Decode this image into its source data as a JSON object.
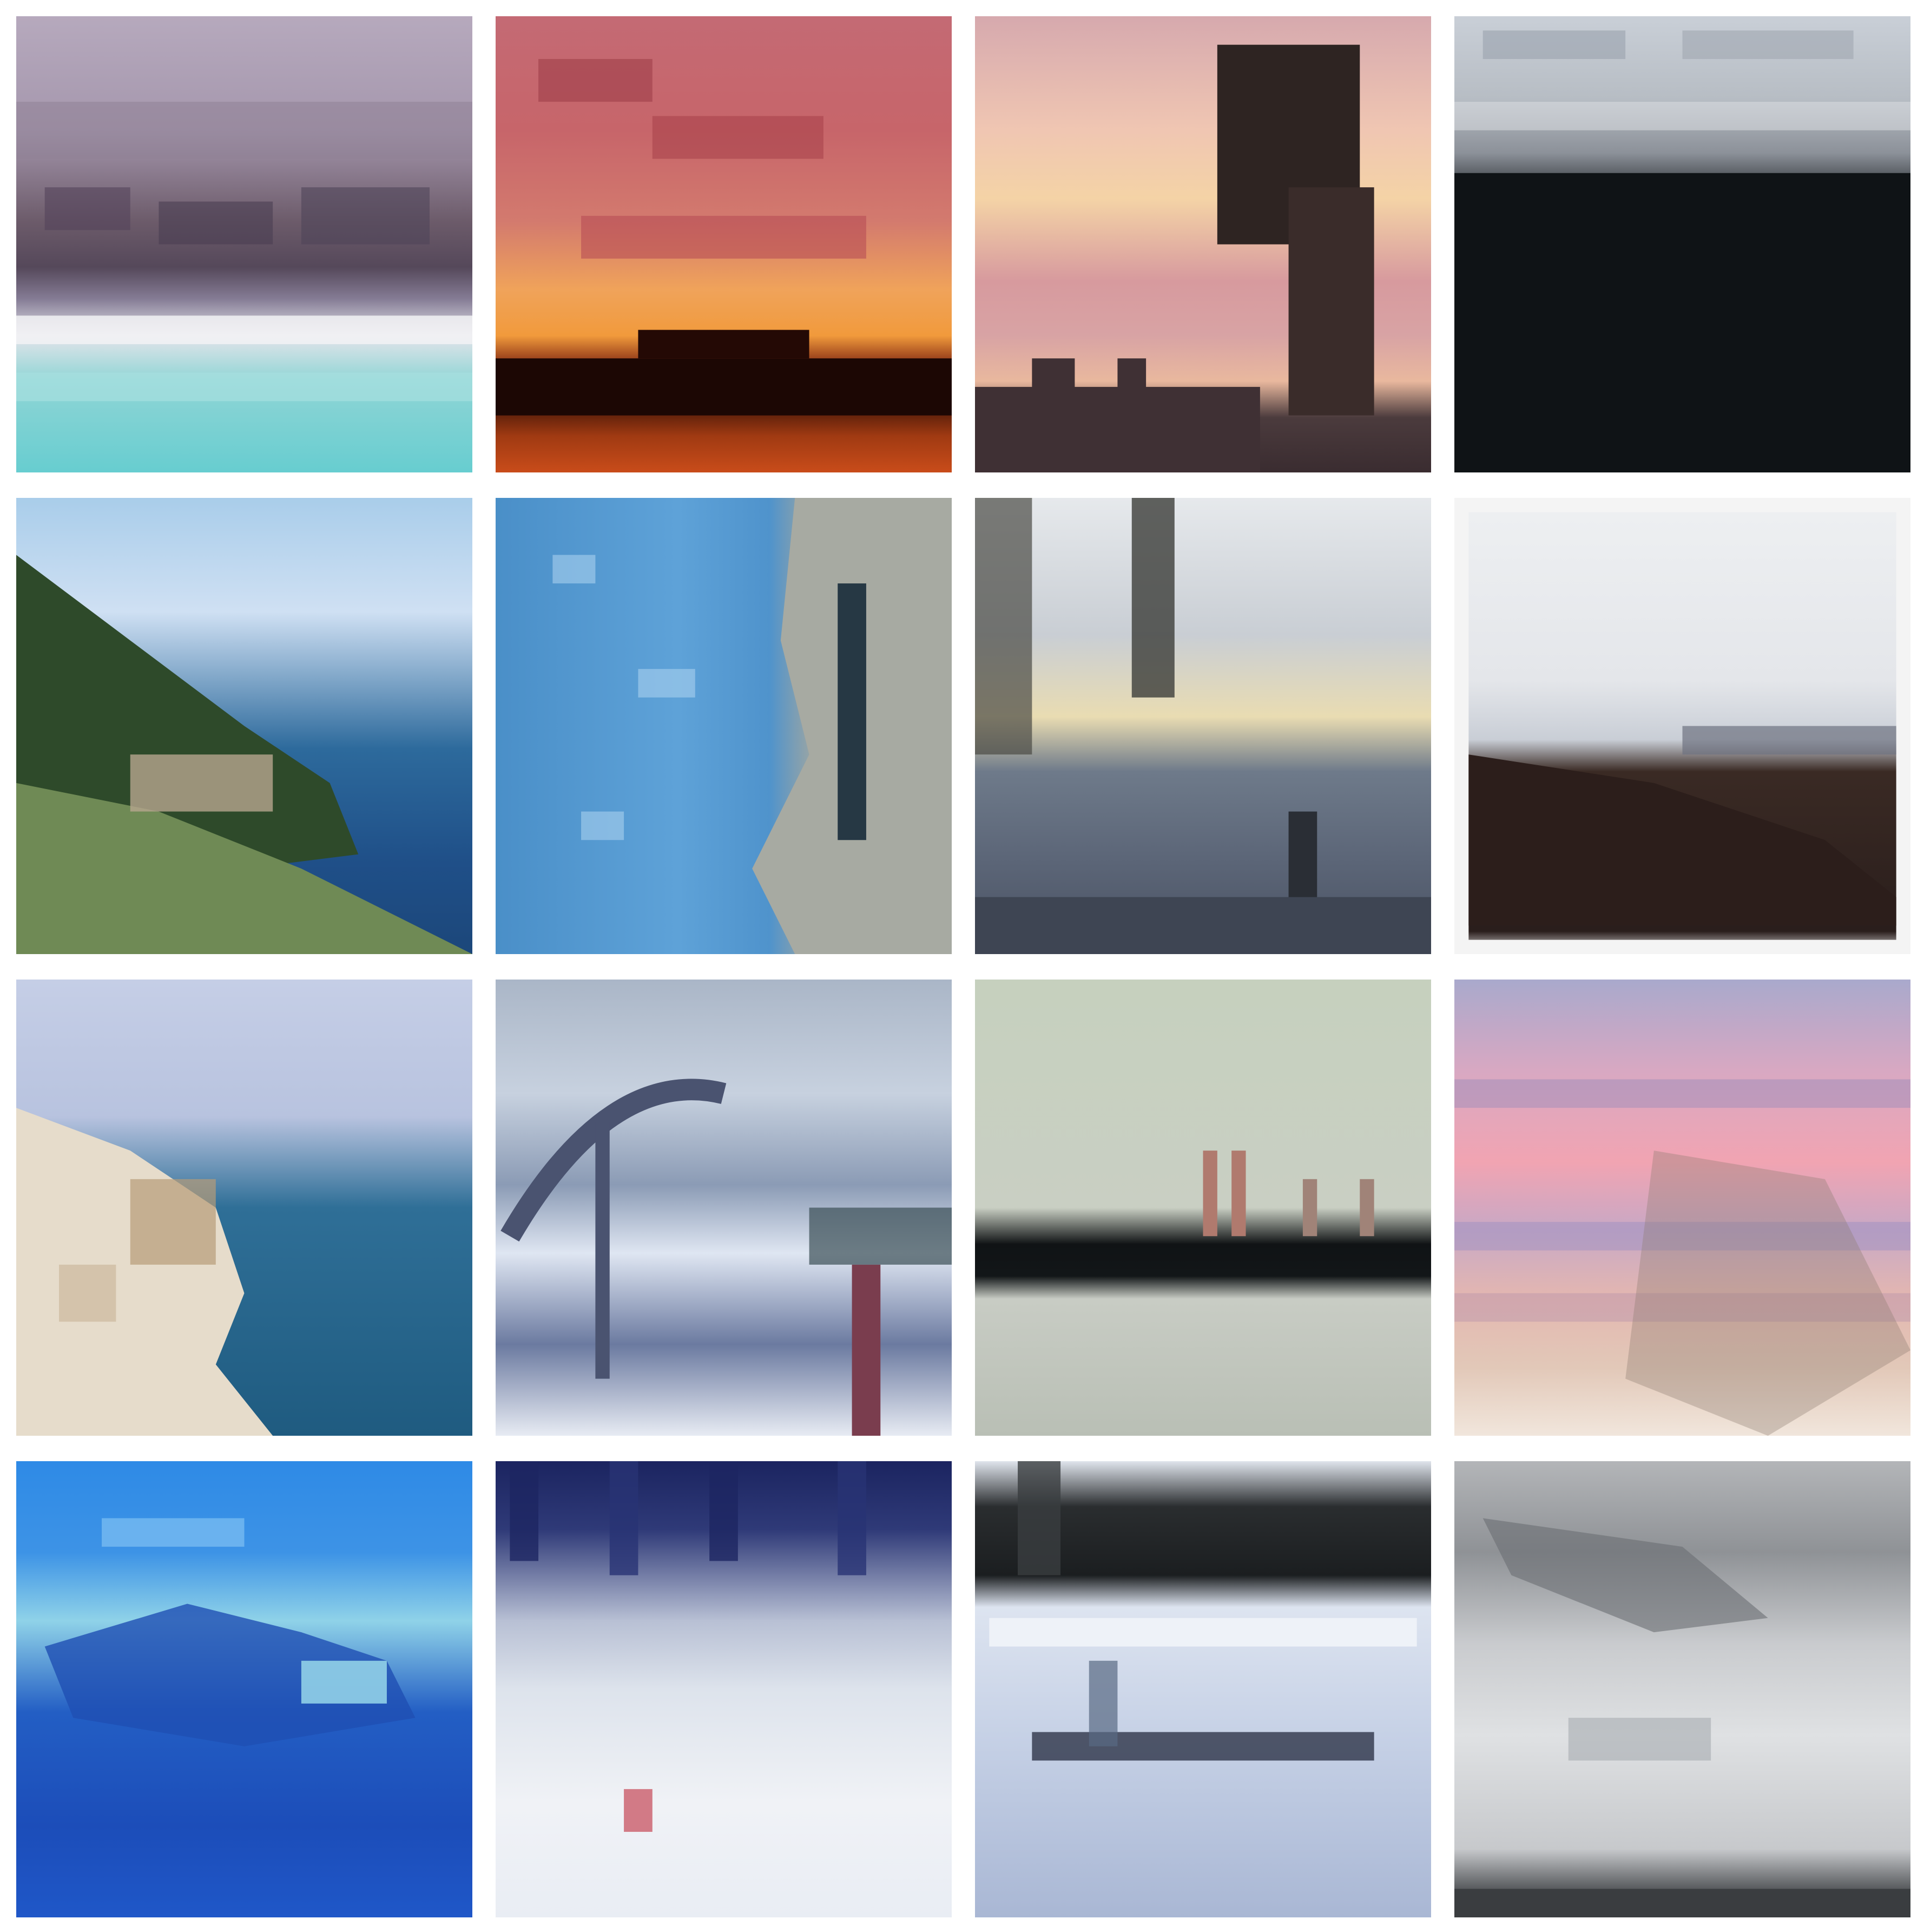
{
  "gallery": {
    "rows": 4,
    "columns": 4,
    "tiles": [
      {
        "subject": "stormy-clouds-over-turquoise-sea-icon"
      },
      {
        "subject": "red-orange-sunset-silhouette-icon"
      },
      {
        "subject": "pink-sunset-with-tree-icon"
      },
      {
        "subject": "dark-silhouette-under-cloudy-sky-icon"
      },
      {
        "subject": "green-coastal-cliff-and-blue-sea-icon"
      },
      {
        "subject": "aerial-blue-water-and-shore-icon"
      },
      {
        "subject": "cloudy-lake-with-trees-icon"
      },
      {
        "subject": "framed-dark-shoreline-photo-icon"
      },
      {
        "subject": "pale-cliff-over-blue-sea-icon"
      },
      {
        "subject": "bridge-over-water-icon"
      },
      {
        "subject": "ship-on-pale-green-sea-icon"
      },
      {
        "subject": "pink-clouds-over-sea-icon"
      },
      {
        "subject": "blue-ocean-wave-icon"
      },
      {
        "subject": "misty-beach-with-person-icon"
      },
      {
        "subject": "shoreline-with-dark-trees-icon"
      },
      {
        "subject": "grey-sky-over-white-sea-icon"
      }
    ]
  }
}
